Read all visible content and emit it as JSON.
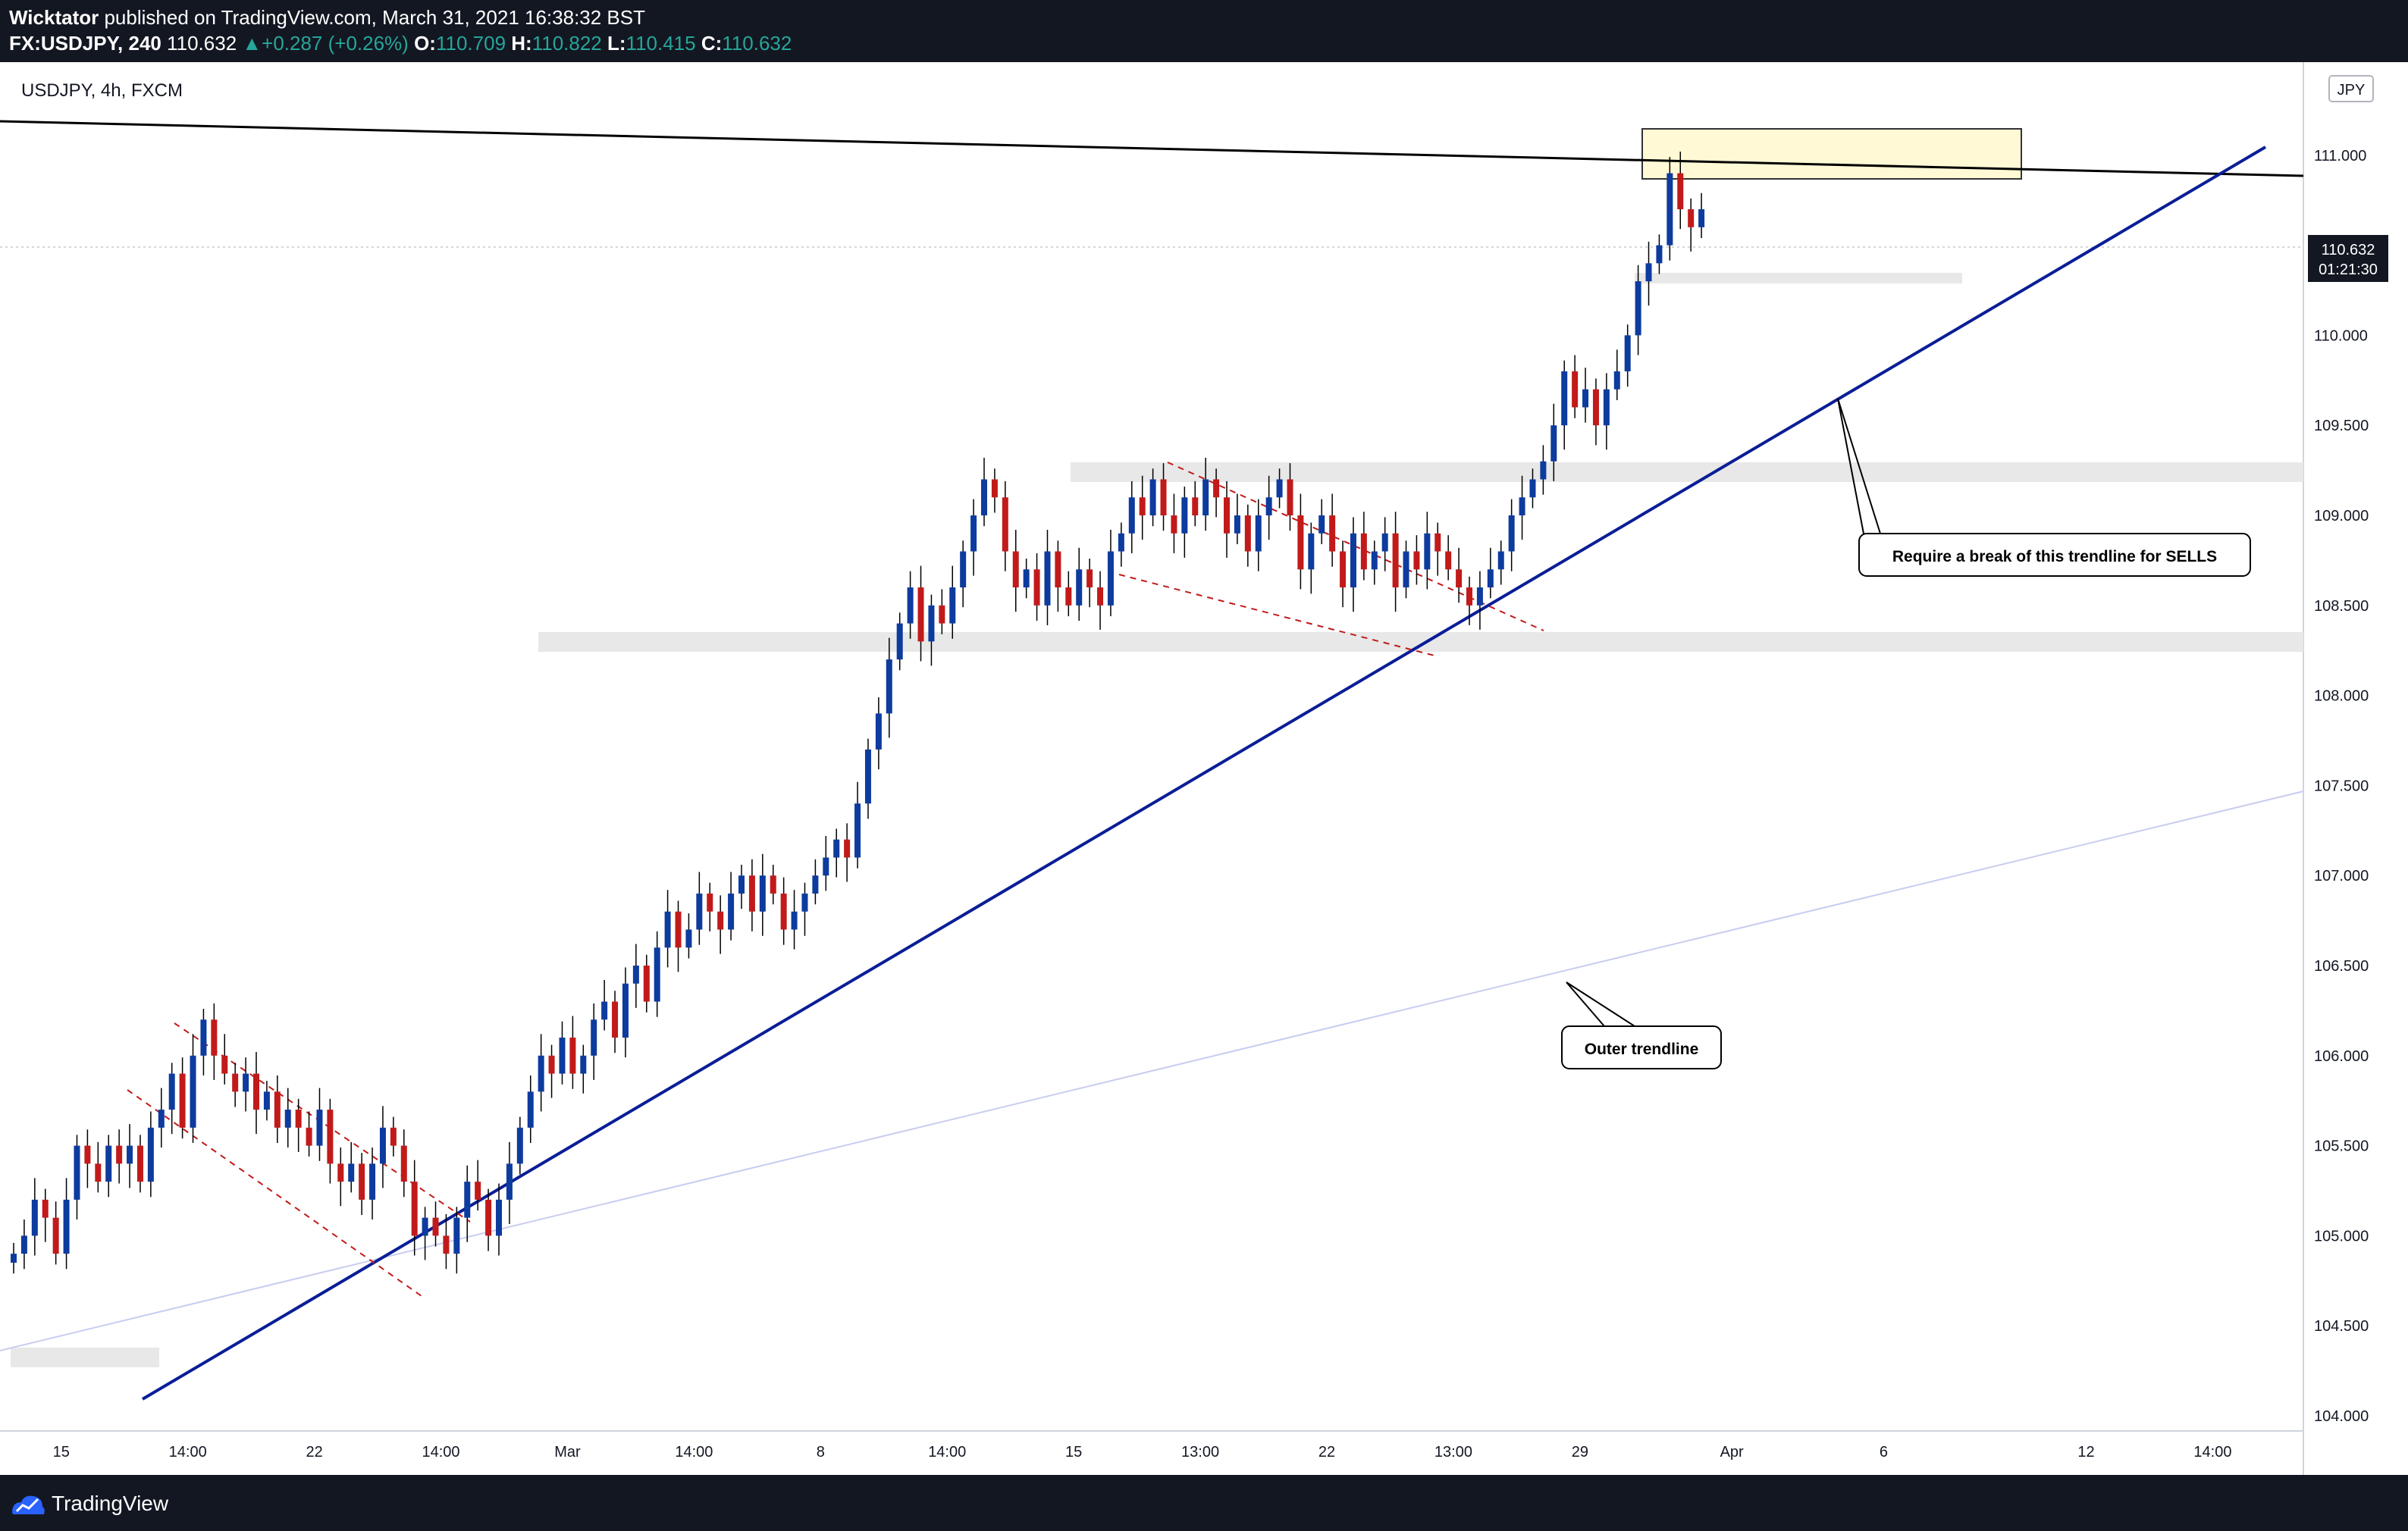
{
  "header": {
    "author": "Wicktator",
    "published_text": "published on TradingView.com, March 31, 2021 16:38:32 BST",
    "symbol": "FX:USDJPY, 240",
    "last": "110.632",
    "change": "+0.287 (+0.26%)",
    "o_label": "O:",
    "o_value": "110.709",
    "h_label": "H:",
    "h_value": "110.822",
    "l_label": "L:",
    "l_value": "110.415",
    "c_label": "C:",
    "c_value": "110.632"
  },
  "chart_title": "USDJPY, 4h, FXCM",
  "footer": {
    "brand": "TradingView"
  },
  "colors": {
    "up": "#0d3b9e",
    "down": "#c21a1a",
    "trendline": "#0a1e96",
    "outer_trendline": "#c8cdf0",
    "zone": "#e8e8e8",
    "target_box": "#fff9d6"
  },
  "chart_data": {
    "type": "candlestick",
    "currency": "JPY",
    "ylim": [
      104.0,
      111.5
    ],
    "y_ticks": [
      "111.000",
      "110.500",
      "110.000",
      "109.500",
      "109.000",
      "108.500",
      "108.000",
      "107.500",
      "107.000",
      "106.500",
      "106.000",
      "105.500",
      "105.000",
      "104.500",
      "104.000"
    ],
    "y_tick_values": [
      111.0,
      110.5,
      110.0,
      109.5,
      109.0,
      108.5,
      108.0,
      107.5,
      107.0,
      106.5,
      106.0,
      105.5,
      105.0,
      104.5,
      104.0
    ],
    "x_ticks": [
      "15",
      "14:00",
      "22",
      "14:00",
      "Mar",
      "14:00",
      "8",
      "14:00",
      "15",
      "13:00",
      "22",
      "13:00",
      "29",
      "Apr",
      "6",
      "12",
      "14:00"
    ],
    "x_tick_index": [
      8,
      28,
      48,
      68,
      88,
      108,
      128,
      148,
      168,
      188,
      208,
      228,
      248,
      272,
      296,
      328,
      348
    ],
    "n_slots": 364,
    "price_label": "110.632",
    "countdown": "01:21:30",
    "closes": [
      104.9,
      105.0,
      105.2,
      105.1,
      104.9,
      105.2,
      105.5,
      105.4,
      105.3,
      105.5,
      105.4,
      105.5,
      105.3,
      105.6,
      105.7,
      105.9,
      105.6,
      106.0,
      106.2,
      106.0,
      105.9,
      105.8,
      105.9,
      105.7,
      105.8,
      105.6,
      105.7,
      105.6,
      105.5,
      105.7,
      105.4,
      105.3,
      105.4,
      105.2,
      105.4,
      105.6,
      105.5,
      105.3,
      105.0,
      105.1,
      105.0,
      104.9,
      105.1,
      105.3,
      105.2,
      105.0,
      105.2,
      105.4,
      105.6,
      105.8,
      106.0,
      105.9,
      106.1,
      105.9,
      106.0,
      106.2,
      106.3,
      106.1,
      106.4,
      106.5,
      106.3,
      106.6,
      106.8,
      106.6,
      106.7,
      106.9,
      106.8,
      106.7,
      106.9,
      107.0,
      106.8,
      107.0,
      106.9,
      106.7,
      106.8,
      106.9,
      107.0,
      107.1,
      107.2,
      107.1,
      107.4,
      107.7,
      107.9,
      108.2,
      108.4,
      108.6,
      108.3,
      108.5,
      108.4,
      108.6,
      108.8,
      109.0,
      109.2,
      109.1,
      108.8,
      108.6,
      108.7,
      108.5,
      108.8,
      108.6,
      108.5,
      108.7,
      108.6,
      108.5,
      108.8,
      108.9,
      109.1,
      109.0,
      109.2,
      109.0,
      108.9,
      109.1,
      109.0,
      109.2,
      109.1,
      108.9,
      109.0,
      108.8,
      109.0,
      109.1,
      109.2,
      109.0,
      108.7,
      108.9,
      109.0,
      108.8,
      108.6,
      108.9,
      108.7,
      108.8,
      108.9,
      108.6,
      108.8,
      108.7,
      108.9,
      108.8,
      108.7,
      108.6,
      108.5,
      108.6,
      108.7,
      108.8,
      109.0,
      109.1,
      109.2,
      109.3,
      109.5,
      109.8,
      109.6,
      109.7,
      109.5,
      109.7,
      109.8,
      110.0,
      110.3,
      110.4,
      110.5,
      110.9,
      110.7,
      110.6,
      110.7
    ]
  },
  "annotations": {
    "trendline_callout": "Require a break of this trendline for SELLS",
    "outer_callout": "Outer trendline"
  }
}
